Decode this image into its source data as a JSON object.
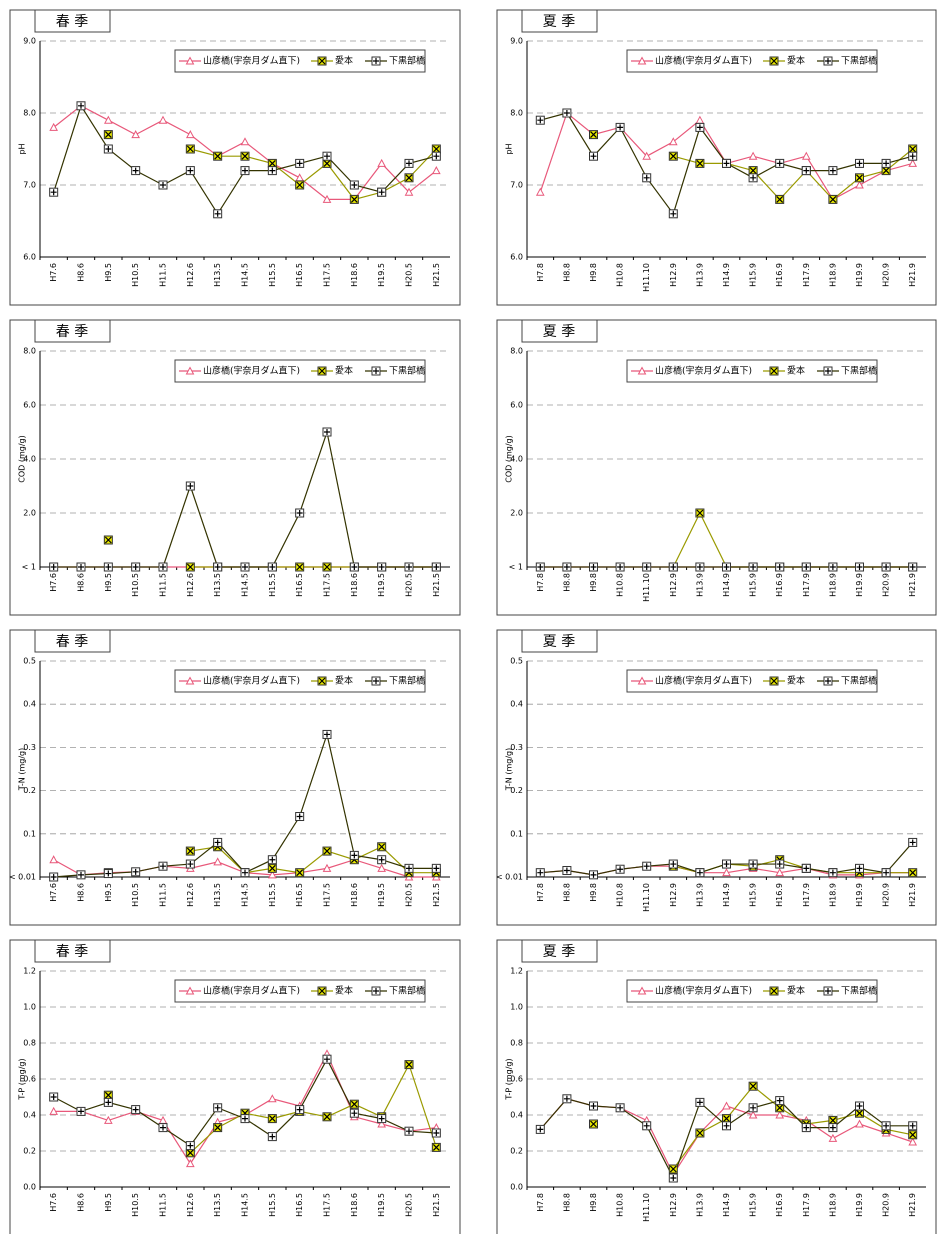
{
  "chart_data": [
    {
      "type": "line",
      "title": "春 季",
      "ylabel": "pH",
      "categories": [
        "H7.6",
        "H8.6",
        "H9.5",
        "H10.5",
        "H11.5",
        "H12.6",
        "H13.5",
        "H14.5",
        "H15.5",
        "H16.5",
        "H17.5",
        "H18.6",
        "H19.5",
        "H20.5",
        "H21.5"
      ],
      "ylim": [
        6,
        9
      ],
      "yticks": [
        {
          "value": 6,
          "label": "6.0"
        },
        {
          "value": 7,
          "label": "7.0"
        },
        {
          "value": 8,
          "label": "8.0"
        },
        {
          "value": 9,
          "label": "9.0"
        }
      ],
      "grid": true,
      "series": [
        {
          "name": "山彦橋(宇奈月ダム直下)",
          "color": "#e8587a",
          "values": [
            7.8,
            8.1,
            7.9,
            7.7,
            7.9,
            7.7,
            7.4,
            7.6,
            7.3,
            7.1,
            6.8,
            6.8,
            7.3,
            6.9,
            7.2
          ]
        },
        {
          "name": "愛本",
          "color": "#9a9a00",
          "values": [
            null,
            null,
            7.7,
            null,
            null,
            7.5,
            7.4,
            7.4,
            7.3,
            7.0,
            7.3,
            6.8,
            6.9,
            7.1,
            7.5
          ]
        },
        {
          "name": "下黒部橋",
          "color": "#333300",
          "values": [
            6.9,
            8.1,
            7.5,
            7.2,
            7.0,
            7.2,
            6.6,
            7.2,
            7.2,
            7.3,
            7.4,
            7.0,
            6.9,
            7.3,
            7.4
          ]
        }
      ]
    },
    {
      "type": "line",
      "title": "夏 季",
      "ylabel": "pH",
      "categories": [
        "H7.8",
        "H8.8",
        "H9.8",
        "H10.8",
        "H11.10",
        "H12.9",
        "H13.9",
        "H14.9",
        "H15.9",
        "H16.9",
        "H17.9",
        "H18.9",
        "H19.9",
        "H20.9",
        "H21.9"
      ],
      "ylim": [
        6,
        9
      ],
      "yticks": [
        {
          "value": 6,
          "label": "6.0"
        },
        {
          "value": 7,
          "label": "7.0"
        },
        {
          "value": 8,
          "label": "8.0"
        },
        {
          "value": 9,
          "label": "9.0"
        }
      ],
      "grid": true,
      "series": [
        {
          "name": "山彦橋(宇奈月ダム直下)",
          "color": "#e8587a",
          "values": [
            6.9,
            8.0,
            7.7,
            7.8,
            7.4,
            7.6,
            7.9,
            7.3,
            7.4,
            7.3,
            7.4,
            6.8,
            7.0,
            7.2,
            7.3
          ]
        },
        {
          "name": "愛本",
          "color": "#9a9a00",
          "values": [
            null,
            null,
            7.7,
            null,
            null,
            7.4,
            7.3,
            7.3,
            7.2,
            6.8,
            7.2,
            6.8,
            7.1,
            7.2,
            7.5
          ]
        },
        {
          "name": "下黒部橋",
          "color": "#333300",
          "values": [
            7.9,
            8.0,
            7.4,
            7.8,
            7.1,
            6.6,
            7.8,
            7.3,
            7.1,
            7.3,
            7.2,
            7.2,
            7.3,
            7.3,
            7.4
          ]
        }
      ]
    },
    {
      "type": "line",
      "title": "春 季",
      "ylabel": "COD (mg/g)",
      "categories": [
        "H7.6",
        "H8.6",
        "H9.5",
        "H10.5",
        "H11.5",
        "H12.6",
        "H13.5",
        "H14.5",
        "H15.5",
        "H16.5",
        "H17.5",
        "H18.6",
        "H19.5",
        "H20.5",
        "H21.5"
      ],
      "ylim": [
        0,
        8
      ],
      "yticks": [
        {
          "value": 0,
          "label": "< 1"
        },
        {
          "value": 2,
          "label": "2.0"
        },
        {
          "value": 4,
          "label": "4.0"
        },
        {
          "value": 6,
          "label": "6.0"
        },
        {
          "value": 8,
          "label": "8.0"
        }
      ],
      "grid": true,
      "series": [
        {
          "name": "山彦橋(宇奈月ダム直下)",
          "color": "#e8587a",
          "values": [
            0,
            0,
            0,
            0,
            0,
            0,
            0,
            0,
            0,
            0,
            0,
            0,
            0,
            0,
            0
          ]
        },
        {
          "name": "愛本",
          "color": "#9a9a00",
          "values": [
            null,
            null,
            1.0,
            null,
            null,
            0,
            0,
            0,
            0,
            0,
            0,
            0,
            0,
            0,
            0
          ]
        },
        {
          "name": "下黒部橋",
          "color": "#333300",
          "values": [
            0,
            0,
            0,
            0,
            0,
            3.0,
            0,
            0,
            0,
            2.0,
            5.0,
            0,
            0,
            0,
            0
          ]
        }
      ]
    },
    {
      "type": "line",
      "title": "夏 季",
      "ylabel": "COD (mg/g)",
      "categories": [
        "H7.8",
        "H8.8",
        "H9.8",
        "H10.8",
        "H11.10",
        "H12.9",
        "H13.9",
        "H14.9",
        "H15.9",
        "H16.9",
        "H17.9",
        "H18.9",
        "H19.9",
        "H20.9",
        "H21.9"
      ],
      "ylim": [
        0,
        8
      ],
      "yticks": [
        {
          "value": 0,
          "label": "< 1"
        },
        {
          "value": 2,
          "label": "2.0"
        },
        {
          "value": 4,
          "label": "4.0"
        },
        {
          "value": 6,
          "label": "6.0"
        },
        {
          "value": 8,
          "label": "8.0"
        }
      ],
      "grid": true,
      "series": [
        {
          "name": "山彦橋(宇奈月ダム直下)",
          "color": "#e8587a",
          "values": [
            0,
            0,
            0,
            0,
            0,
            0,
            0,
            0,
            0,
            0,
            0,
            0,
            0,
            0,
            0
          ]
        },
        {
          "name": "愛本",
          "color": "#9a9a00",
          "values": [
            null,
            null,
            0,
            null,
            null,
            0,
            2.0,
            0,
            0,
            0,
            0,
            0,
            0,
            0,
            0
          ]
        },
        {
          "name": "下黒部橋",
          "color": "#333300",
          "values": [
            0,
            0,
            0,
            0,
            0,
            0,
            0,
            0,
            0,
            0,
            0,
            0,
            0,
            0,
            0
          ]
        }
      ]
    },
    {
      "type": "line",
      "title": "春 季",
      "ylabel": "T-N (mg/g)",
      "categories": [
        "H7.6",
        "H8.6",
        "H9.5",
        "H10.5",
        "H11.5",
        "H12.6",
        "H13.5",
        "H14.5",
        "H15.5",
        "H16.5",
        "H17.5",
        "H18.6",
        "H19.5",
        "H20.5",
        "H21.5"
      ],
      "ylim": [
        0,
        0.5
      ],
      "yticks": [
        {
          "value": 0,
          "label": "< 0.01"
        },
        0.1,
        0.2,
        0.3,
        0.4,
        0.5
      ],
      "grid": true,
      "series": [
        {
          "name": "山彦橋(宇奈月ダム直下)",
          "color": "#e8587a",
          "values": [
            0.04,
            0.005,
            0.01,
            0.012,
            0.025,
            0.02,
            0.035,
            0.01,
            0.005,
            0.01,
            0.02,
            0.04,
            0.02,
            0.0,
            0.0
          ]
        },
        {
          "name": "愛本",
          "color": "#9a9a00",
          "values": [
            null,
            null,
            0.01,
            null,
            null,
            0.06,
            0.07,
            0.01,
            0.02,
            0.01,
            0.06,
            0.04,
            0.07,
            0.01,
            0.01
          ]
        },
        {
          "name": "下黒部橋",
          "color": "#333300",
          "values": [
            0,
            0.005,
            0.008,
            0.012,
            0.025,
            0.03,
            0.08,
            0.01,
            0.04,
            0.14,
            0.33,
            0.05,
            0.04,
            0.02,
            0.02
          ]
        }
      ]
    },
    {
      "type": "line",
      "title": "夏 季",
      "ylabel": "T-N (mg/g)",
      "categories": [
        "H7.8",
        "H8.8",
        "H9.8",
        "H10.8",
        "H11.10",
        "H12.9",
        "H13.9",
        "H14.9",
        "H15.9",
        "H16.9",
        "H17.9",
        "H18.9",
        "H19.9",
        "H20.9",
        "H21.9"
      ],
      "ylim": [
        0,
        0.5
      ],
      "yticks": [
        {
          "value": 0,
          "label": "< 0.01"
        },
        0.1,
        0.2,
        0.3,
        0.4,
        0.5
      ],
      "grid": true,
      "series": [
        {
          "name": "山彦橋(宇奈月ダム直下)",
          "color": "#e8587a",
          "values": [
            0.01,
            0.015,
            0.005,
            0.018,
            0.025,
            0.025,
            0.01,
            0.01,
            0.02,
            0.01,
            0.02,
            0.005,
            0.005,
            0.01,
            0.01
          ]
        },
        {
          "name": "愛本",
          "color": "#9a9a00",
          "values": [
            null,
            null,
            null,
            null,
            null,
            0.025,
            0.01,
            0.03,
            0.025,
            0.04,
            0.02,
            0.01,
            0.01,
            0.01,
            0.01
          ]
        },
        {
          "name": "下黒部橋",
          "color": "#333300",
          "values": [
            0.01,
            0.015,
            0.005,
            0.018,
            0.025,
            0.03,
            0.01,
            0.03,
            0.03,
            0.03,
            0.02,
            0.01,
            0.02,
            0.01,
            0.08
          ]
        }
      ]
    },
    {
      "type": "line",
      "title": "春 季",
      "ylabel": "T-P (mg/g)",
      "categories": [
        "H7.6",
        "H8.6",
        "H9.5",
        "H10.5",
        "H11.5",
        "H12.6",
        "H13.5",
        "H14.5",
        "H15.5",
        "H16.5",
        "H17.5",
        "H18.6",
        "H19.5",
        "H20.5",
        "H21.5"
      ],
      "ylim": [
        0,
        1.2
      ],
      "yticks": [
        {
          "value": 0,
          "label": "0.0"
        },
        0.2,
        0.4,
        0.6,
        0.8,
        {
          "value": 1,
          "label": "1.0"
        },
        1.2
      ],
      "grid": true,
      "series": [
        {
          "name": "山彦橋(宇奈月ダム直下)",
          "color": "#e8587a",
          "values": [
            0.42,
            0.42,
            0.37,
            0.42,
            0.37,
            0.13,
            0.36,
            0.4,
            0.49,
            0.45,
            0.74,
            0.39,
            0.35,
            0.31,
            0.33
          ]
        },
        {
          "name": "愛本",
          "color": "#9a9a00",
          "values": [
            null,
            null,
            0.51,
            null,
            null,
            0.19,
            0.33,
            0.41,
            0.38,
            0.42,
            0.39,
            0.46,
            0.39,
            0.68,
            0.22
          ]
        },
        {
          "name": "下黒部橋",
          "color": "#333300",
          "values": [
            0.5,
            0.42,
            0.47,
            0.43,
            0.33,
            0.23,
            0.44,
            0.38,
            0.28,
            0.43,
            0.71,
            0.41,
            0.38,
            0.31,
            0.3
          ]
        }
      ]
    },
    {
      "type": "line",
      "title": "夏 季",
      "ylabel": "T-P (mg/g)",
      "categories": [
        "H7.8",
        "H8.8",
        "H9.8",
        "H10.8",
        "H11.10",
        "H12.9",
        "H13.9",
        "H14.9",
        "H15.9",
        "H16.9",
        "H17.9",
        "H18.9",
        "H19.9",
        "H20.9",
        "H21.9"
      ],
      "ylim": [
        0,
        1.2
      ],
      "yticks": [
        {
          "value": 0,
          "label": "0.0"
        },
        0.2,
        0.4,
        0.6,
        0.8,
        {
          "value": 1,
          "label": "1.0"
        },
        1.2
      ],
      "grid": true,
      "series": [
        {
          "name": "山彦橋(宇奈月ダム直下)",
          "color": "#e8587a",
          "values": [
            0.32,
            0.49,
            0.45,
            0.44,
            0.37,
            0.07,
            0.3,
            0.45,
            0.4,
            0.4,
            0.37,
            0.27,
            0.35,
            0.3,
            0.25
          ]
        },
        {
          "name": "愛本",
          "color": "#9a9a00",
          "values": [
            null,
            null,
            0.35,
            null,
            null,
            0.1,
            0.3,
            0.38,
            0.56,
            0.44,
            0.35,
            0.37,
            0.41,
            0.32,
            0.29
          ]
        },
        {
          "name": "下黒部橋",
          "color": "#333300",
          "values": [
            0.32,
            0.49,
            0.45,
            0.44,
            0.34,
            0.05,
            0.47,
            0.34,
            0.44,
            0.48,
            0.33,
            0.33,
            0.45,
            0.34,
            0.34
          ]
        }
      ]
    }
  ]
}
